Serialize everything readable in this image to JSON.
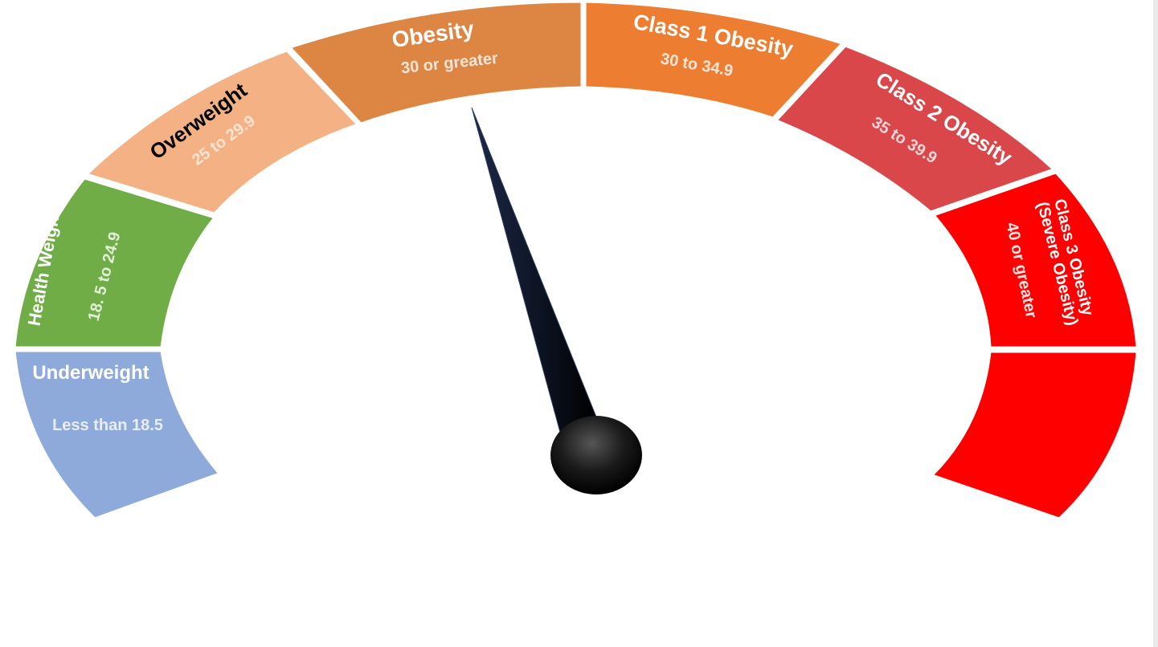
{
  "segments": [
    {
      "id": "underweight",
      "label": "Underweight",
      "range": "Less than 18.5",
      "color": "#8eaadb",
      "label_color": "#ffffff",
      "range_color": "#e8eef8"
    },
    {
      "id": "healthy",
      "label": "Health Weight",
      "range": "18. 5 to  24.9",
      "color": "#70ad47",
      "label_color": "#ffffff",
      "range_color": "#e2efd9"
    },
    {
      "id": "overweight",
      "label": "Overweight",
      "range": "25 to 29.9",
      "color": "#f4b183",
      "label_color": "#000000",
      "range_color": "#fbe5d6"
    },
    {
      "id": "obesity",
      "label": "Obesity",
      "range": "30 or greater",
      "color": "#dd8644",
      "label_color": "#ffffff",
      "range_color": "#fbe5d6"
    },
    {
      "id": "class1",
      "label": "Class 1 Obesity",
      "range": "30 to 34.9",
      "color": "#ed7d31",
      "label_color": "#ffffff",
      "range_color": "#fbe5d6"
    },
    {
      "id": "class2",
      "label": "Class 2 Obesity",
      "range": "35 to 39.9",
      "color": "#d9474a",
      "label_color": "#ffffff",
      "range_color": "#f8d5d6"
    },
    {
      "id": "class3",
      "label": "Class 3 Obesity",
      "label2": "(Severe Obesity)",
      "range": "40 or greater",
      "color": "#ff0000",
      "label_color": "#ffffff",
      "range_color": "#ffe5e5"
    },
    {
      "id": "extreme",
      "label": "",
      "range": "",
      "color": "#ff0000"
    }
  ],
  "needle": {
    "color": "#000000",
    "pointing_at": "obesity"
  }
}
